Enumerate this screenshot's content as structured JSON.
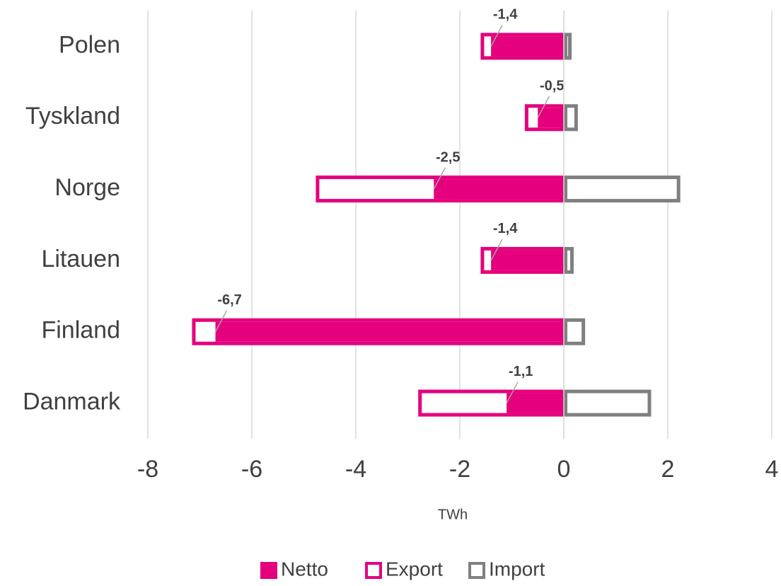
{
  "chart_data": {
    "type": "bar",
    "orientation": "horizontal",
    "categories": [
      "Polen",
      "Tyskland",
      "Norge",
      "Litauen",
      "Finland",
      "Danmark"
    ],
    "series": [
      {
        "name": "Netto",
        "color": "#e5007d",
        "style": "filled",
        "values": [
          -1.4,
          -0.5,
          -2.5,
          -1.4,
          -6.7,
          -1.1
        ],
        "value_labels": [
          "-1,4",
          "-0,5",
          "-2,5",
          "-1,4",
          "-6,7",
          "-1,1"
        ]
      },
      {
        "name": "Export",
        "color": "#e5007d",
        "style": "outline",
        "values": [
          -1.6,
          -0.75,
          -4.77,
          -1.6,
          -7.15,
          -2.8
        ]
      },
      {
        "name": "Import",
        "color": "#808080",
        "style": "outline",
        "values": [
          0.15,
          0.27,
          2.24,
          0.19,
          0.41,
          1.68
        ]
      }
    ],
    "xlabel": "TWh",
    "xlim": [
      -8,
      4
    ],
    "xticks": [
      -8,
      -6,
      -4,
      -2,
      0,
      2,
      4
    ],
    "grid": true,
    "legend": "bottom"
  }
}
